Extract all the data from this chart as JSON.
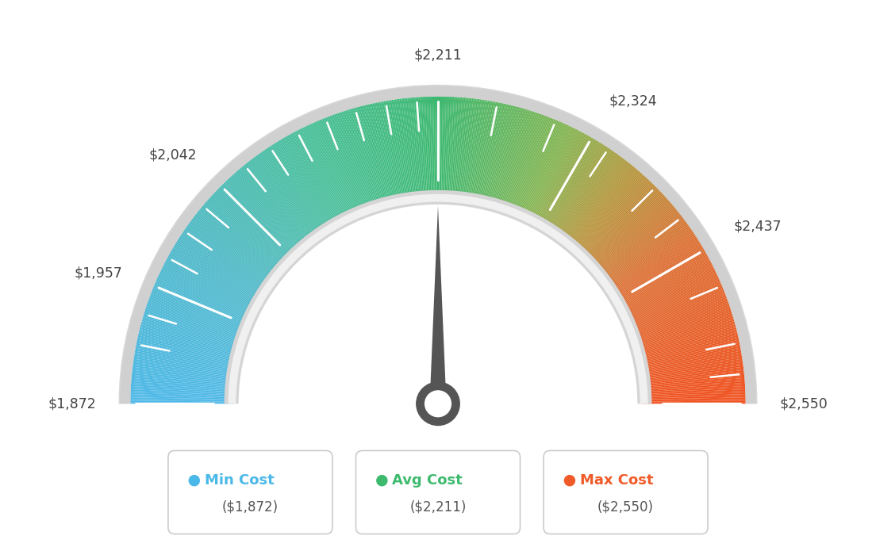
{
  "min_val": 1872,
  "avg_val": 2211,
  "max_val": 2550,
  "tick_labels": [
    "$1,872",
    "$1,957",
    "$2,042",
    "$2,211",
    "$2,324",
    "$2,437",
    "$2,550"
  ],
  "tick_values": [
    1872,
    1957,
    2042,
    2211,
    2324,
    2437,
    2550
  ],
  "minor_tick_values": [
    1914,
    1936,
    1979,
    2001,
    2023,
    2064,
    2086,
    2108,
    2130,
    2152,
    2174,
    2196,
    2253,
    2296,
    2338,
    2381,
    2409,
    2465,
    2507,
    2529
  ],
  "legend_items": [
    {
      "label": "Min Cost",
      "sublabel": "($1,872)",
      "color": "#4ab8e8"
    },
    {
      "label": "Avg Cost",
      "sublabel": "($2,211)",
      "color": "#3dba6e"
    },
    {
      "label": "Max Cost",
      "sublabel": "($2,550)",
      "color": "#f05a28"
    }
  ],
  "background_color": "#ffffff",
  "needle_value": 2211,
  "color_stops": [
    [
      0.0,
      [
        77,
        184,
        232
      ]
    ],
    [
      0.18,
      [
        77,
        184,
        200
      ]
    ],
    [
      0.36,
      [
        70,
        190,
        150
      ]
    ],
    [
      0.5,
      [
        61,
        184,
        112
      ]
    ],
    [
      0.64,
      [
        130,
        180,
        80
      ]
    ],
    [
      0.72,
      [
        180,
        150,
        60
      ]
    ],
    [
      0.82,
      [
        220,
        110,
        50
      ]
    ],
    [
      1.0,
      [
        240,
        80,
        30
      ]
    ]
  ]
}
